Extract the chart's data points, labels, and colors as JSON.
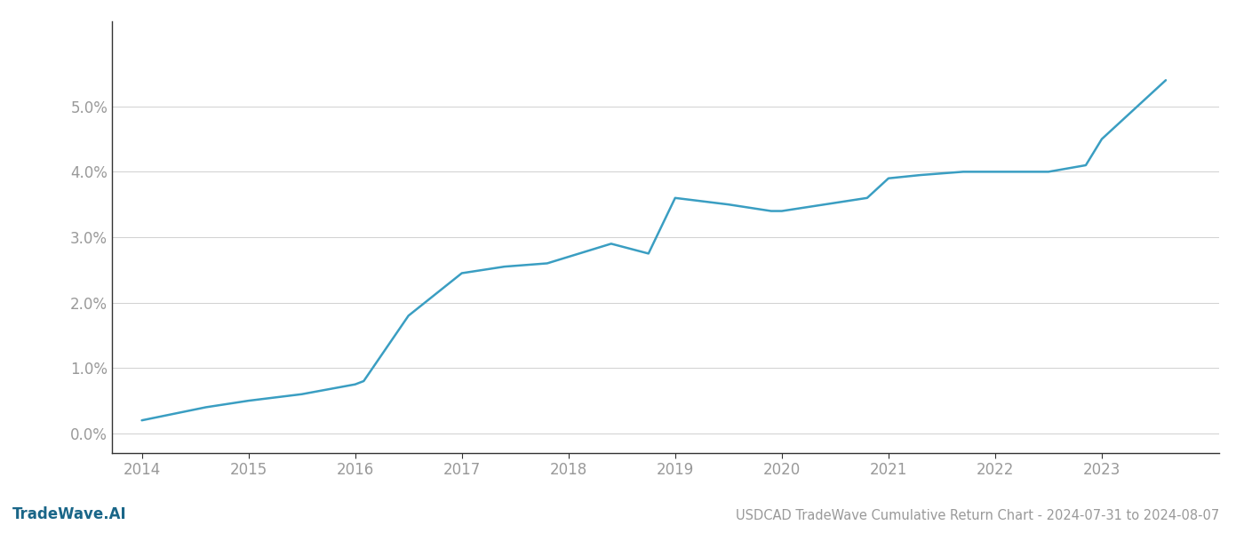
{
  "x_years": [
    2014.0,
    2014.6,
    2015.0,
    2015.5,
    2016.0,
    2016.08,
    2016.5,
    2017.0,
    2017.4,
    2017.8,
    2018.0,
    2018.4,
    2018.75,
    2019.0,
    2019.5,
    2019.9,
    2020.0,
    2020.4,
    2020.8,
    2021.0,
    2021.3,
    2021.7,
    2022.0,
    2022.5,
    2022.85,
    2023.0,
    2023.6
  ],
  "y_values": [
    0.002,
    0.004,
    0.005,
    0.006,
    0.0075,
    0.008,
    0.018,
    0.0245,
    0.0255,
    0.026,
    0.027,
    0.029,
    0.0275,
    0.036,
    0.035,
    0.034,
    0.034,
    0.035,
    0.036,
    0.039,
    0.0395,
    0.04,
    0.04,
    0.04,
    0.041,
    0.045,
    0.054
  ],
  "line_color": "#3a9ec2",
  "line_width": 1.8,
  "background_color": "#ffffff",
  "grid_color": "#d0d0d0",
  "tick_color": "#999999",
  "spine_color": "#333333",
  "title_text": "USDCAD TradeWave Cumulative Return Chart - 2024-07-31 to 2024-08-07",
  "title_fontsize": 10.5,
  "watermark_text": "TradeWave.AI",
  "watermark_fontsize": 12,
  "watermark_color": "#1a6688",
  "tick_fontsize": 12,
  "xlim": [
    2013.72,
    2024.1
  ],
  "ylim": [
    -0.003,
    0.063
  ],
  "yticks": [
    0.0,
    0.01,
    0.02,
    0.03,
    0.04,
    0.05
  ],
  "xticks": [
    2014,
    2015,
    2016,
    2017,
    2018,
    2019,
    2020,
    2021,
    2022,
    2023
  ]
}
